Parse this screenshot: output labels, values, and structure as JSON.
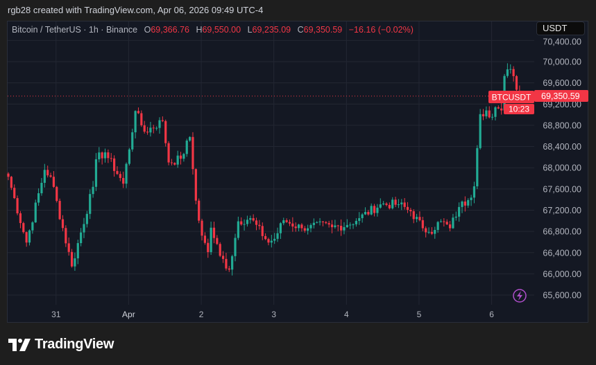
{
  "credit": "rgb28 created with TradingView.com, Apr 06, 2026 09:49 UTC-4",
  "legend": {
    "symbol": "Bitcoin / TetherUS · 1h · Binance",
    "open_label": "O",
    "open": "69,366.76",
    "high_label": "H",
    "high": "69,550.00",
    "low_label": "L",
    "low": "69,235.09",
    "close_label": "C",
    "close": "69,350.59",
    "change": "−16.16 (−0.02%)"
  },
  "currency_button": "USDT",
  "price_tag": {
    "symbol": "BTCUSDT",
    "price": "69,350.59",
    "countdown": "10:23"
  },
  "logo_text": "TradingView",
  "colors": {
    "up": "#22ab94",
    "down": "#f23645",
    "grid": "#232733",
    "axis_text": "#b2b5be",
    "alert": "#b04fcc"
  },
  "icons": {
    "alert": "lightning-icon"
  },
  "chart_data": {
    "type": "candlestick",
    "interval": "1h",
    "y_ticks": [
      "70,400.00",
      "70,000.00",
      "69,600.00",
      "69,200.00",
      "68,800.00",
      "68,400.00",
      "68,000.00",
      "67,600.00",
      "67,200.00",
      "66,800.00",
      "66,400.00",
      "66,000.00",
      "65,600.00"
    ],
    "y_tick_values": [
      70400,
      70000,
      69600,
      69200,
      68800,
      68400,
      68000,
      67600,
      67200,
      66800,
      66400,
      66000,
      65600
    ],
    "x_ticks": [
      {
        "label": "31",
        "hour": 16
      },
      {
        "label": "Apr",
        "hour": 40
      },
      {
        "label": "2",
        "hour": 64
      },
      {
        "label": "3",
        "hour": 88
      },
      {
        "label": "4",
        "hour": 112
      },
      {
        "label": "5",
        "hour": 136
      },
      {
        "label": "6",
        "hour": 160
      }
    ],
    "close_anchors": [
      [
        0,
        67830
      ],
      [
        6,
        66590
      ],
      [
        12,
        67960
      ],
      [
        14,
        67830
      ],
      [
        21,
        66140
      ],
      [
        28,
        67640
      ],
      [
        29,
        68160
      ],
      [
        32,
        68290
      ],
      [
        38,
        67700
      ],
      [
        42,
        69070
      ],
      [
        45,
        68680
      ],
      [
        51,
        68880
      ],
      [
        53,
        68100
      ],
      [
        57,
        68170
      ],
      [
        60,
        68580
      ],
      [
        62,
        67380
      ],
      [
        64,
        66720
      ],
      [
        66,
        66410
      ],
      [
        67,
        66870
      ],
      [
        70,
        66340
      ],
      [
        73,
        66080
      ],
      [
        76,
        66990
      ],
      [
        80,
        67050
      ],
      [
        86,
        66590
      ],
      [
        88,
        66660
      ],
      [
        91,
        67010
      ],
      [
        97,
        66860
      ],
      [
        100,
        66920
      ],
      [
        107,
        66880
      ],
      [
        112,
        66920
      ],
      [
        116,
        67050
      ],
      [
        123,
        67310
      ],
      [
        129,
        67310
      ],
      [
        133,
        67180
      ],
      [
        137,
        66860
      ],
      [
        139,
        66790
      ],
      [
        143,
        66990
      ],
      [
        146,
        66860
      ],
      [
        149,
        67260
      ],
      [
        152,
        67390
      ],
      [
        154,
        67650
      ],
      [
        155,
        68370
      ],
      [
        156,
        69010
      ],
      [
        158,
        69080
      ],
      [
        159,
        68950
      ],
      [
        161,
        69140
      ],
      [
        163,
        69080
      ],
      [
        164,
        69730
      ],
      [
        166,
        69860
      ],
      [
        168,
        69470
      ]
    ],
    "last_candle": {
      "open": 69366.76,
      "high": 69550.0,
      "low": 69235.09,
      "close": 69350.59
    },
    "last_price": 69350.59
  }
}
